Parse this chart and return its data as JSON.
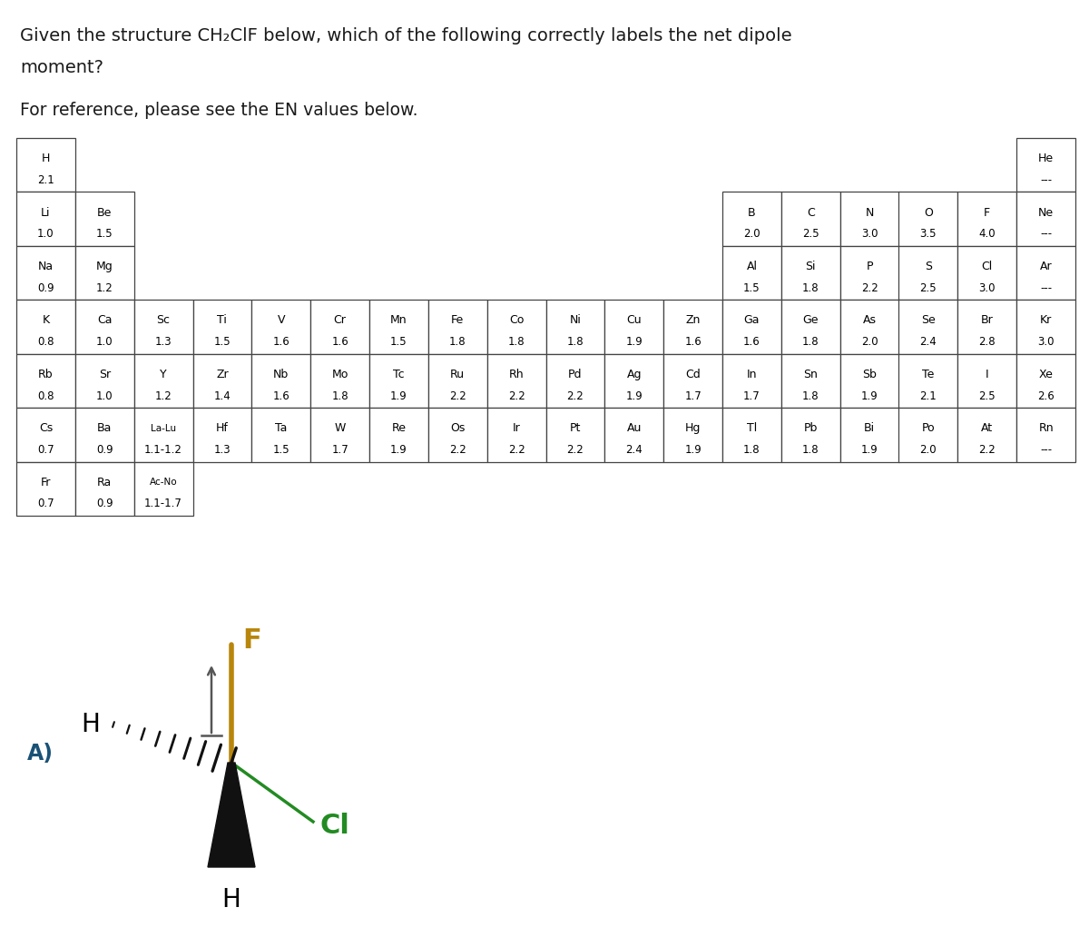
{
  "title_line1": "Given the structure CH₂ClF below, which of the following correctly labels the net dipole",
  "title_line2": "moment?",
  "subtitle": "For reference, please see the EN values below.",
  "bg_color": "#ffffff",
  "text_color": "#1a1a1a",
  "table_elements": [
    {
      "symbol": "H",
      "value": "2.1",
      "col": 0,
      "row": 0
    },
    {
      "symbol": "He",
      "value": "---",
      "col": 17,
      "row": 0
    },
    {
      "symbol": "Li",
      "value": "1.0",
      "col": 0,
      "row": 1
    },
    {
      "symbol": "Be",
      "value": "1.5",
      "col": 1,
      "row": 1
    },
    {
      "symbol": "B",
      "value": "2.0",
      "col": 12,
      "row": 1
    },
    {
      "symbol": "C",
      "value": "2.5",
      "col": 13,
      "row": 1
    },
    {
      "symbol": "N",
      "value": "3.0",
      "col": 14,
      "row": 1
    },
    {
      "symbol": "O",
      "value": "3.5",
      "col": 15,
      "row": 1
    },
    {
      "symbol": "F",
      "value": "4.0",
      "col": 16,
      "row": 1
    },
    {
      "symbol": "Ne",
      "value": "---",
      "col": 17,
      "row": 1
    },
    {
      "symbol": "Na",
      "value": "0.9",
      "col": 0,
      "row": 2
    },
    {
      "symbol": "Mg",
      "value": "1.2",
      "col": 1,
      "row": 2
    },
    {
      "symbol": "Al",
      "value": "1.5",
      "col": 12,
      "row": 2
    },
    {
      "symbol": "Si",
      "value": "1.8",
      "col": 13,
      "row": 2
    },
    {
      "symbol": "P",
      "value": "2.2",
      "col": 14,
      "row": 2
    },
    {
      "symbol": "S",
      "value": "2.5",
      "col": 15,
      "row": 2
    },
    {
      "symbol": "Cl",
      "value": "3.0",
      "col": 16,
      "row": 2
    },
    {
      "symbol": "Ar",
      "value": "---",
      "col": 17,
      "row": 2
    },
    {
      "symbol": "K",
      "value": "0.8",
      "col": 0,
      "row": 3
    },
    {
      "symbol": "Ca",
      "value": "1.0",
      "col": 1,
      "row": 3
    },
    {
      "symbol": "Sc",
      "value": "1.3",
      "col": 2,
      "row": 3
    },
    {
      "symbol": "Ti",
      "value": "1.5",
      "col": 3,
      "row": 3
    },
    {
      "symbol": "V",
      "value": "1.6",
      "col": 4,
      "row": 3
    },
    {
      "symbol": "Cr",
      "value": "1.6",
      "col": 5,
      "row": 3
    },
    {
      "symbol": "Mn",
      "value": "1.5",
      "col": 6,
      "row": 3
    },
    {
      "symbol": "Fe",
      "value": "1.8",
      "col": 7,
      "row": 3
    },
    {
      "symbol": "Co",
      "value": "1.8",
      "col": 8,
      "row": 3
    },
    {
      "symbol": "Ni",
      "value": "1.8",
      "col": 9,
      "row": 3
    },
    {
      "symbol": "Cu",
      "value": "1.9",
      "col": 10,
      "row": 3
    },
    {
      "symbol": "Zn",
      "value": "1.6",
      "col": 11,
      "row": 3
    },
    {
      "symbol": "Ga",
      "value": "1.6",
      "col": 12,
      "row": 3
    },
    {
      "symbol": "Ge",
      "value": "1.8",
      "col": 13,
      "row": 3
    },
    {
      "symbol": "As",
      "value": "2.0",
      "col": 14,
      "row": 3
    },
    {
      "symbol": "Se",
      "value": "2.4",
      "col": 15,
      "row": 3
    },
    {
      "symbol": "Br",
      "value": "2.8",
      "col": 16,
      "row": 3
    },
    {
      "symbol": "Kr",
      "value": "3.0",
      "col": 17,
      "row": 3
    },
    {
      "symbol": "Rb",
      "value": "0.8",
      "col": 0,
      "row": 4
    },
    {
      "symbol": "Sr",
      "value": "1.0",
      "col": 1,
      "row": 4
    },
    {
      "symbol": "Y",
      "value": "1.2",
      "col": 2,
      "row": 4
    },
    {
      "symbol": "Zr",
      "value": "1.4",
      "col": 3,
      "row": 4
    },
    {
      "symbol": "Nb",
      "value": "1.6",
      "col": 4,
      "row": 4
    },
    {
      "symbol": "Mo",
      "value": "1.8",
      "col": 5,
      "row": 4
    },
    {
      "symbol": "Tc",
      "value": "1.9",
      "col": 6,
      "row": 4
    },
    {
      "symbol": "Ru",
      "value": "2.2",
      "col": 7,
      "row": 4
    },
    {
      "symbol": "Rh",
      "value": "2.2",
      "col": 8,
      "row": 4
    },
    {
      "symbol": "Pd",
      "value": "2.2",
      "col": 9,
      "row": 4
    },
    {
      "symbol": "Ag",
      "value": "1.9",
      "col": 10,
      "row": 4
    },
    {
      "symbol": "Cd",
      "value": "1.7",
      "col": 11,
      "row": 4
    },
    {
      "symbol": "In",
      "value": "1.7",
      "col": 12,
      "row": 4
    },
    {
      "symbol": "Sn",
      "value": "1.8",
      "col": 13,
      "row": 4
    },
    {
      "symbol": "Sb",
      "value": "1.9",
      "col": 14,
      "row": 4
    },
    {
      "symbol": "Te",
      "value": "2.1",
      "col": 15,
      "row": 4
    },
    {
      "symbol": "I",
      "value": "2.5",
      "col": 16,
      "row": 4
    },
    {
      "symbol": "Xe",
      "value": "2.6",
      "col": 17,
      "row": 4
    },
    {
      "symbol": "Cs",
      "value": "0.7",
      "col": 0,
      "row": 5
    },
    {
      "symbol": "Ba",
      "value": "0.9",
      "col": 1,
      "row": 5
    },
    {
      "symbol": "La-Lu",
      "value": "1.1-1.2",
      "col": 2,
      "row": 5
    },
    {
      "symbol": "Hf",
      "value": "1.3",
      "col": 3,
      "row": 5
    },
    {
      "symbol": "Ta",
      "value": "1.5",
      "col": 4,
      "row": 5
    },
    {
      "symbol": "W",
      "value": "1.7",
      "col": 5,
      "row": 5
    },
    {
      "symbol": "Re",
      "value": "1.9",
      "col": 6,
      "row": 5
    },
    {
      "symbol": "Os",
      "value": "2.2",
      "col": 7,
      "row": 5
    },
    {
      "symbol": "Ir",
      "value": "2.2",
      "col": 8,
      "row": 5
    },
    {
      "symbol": "Pt",
      "value": "2.2",
      "col": 9,
      "row": 5
    },
    {
      "symbol": "Au",
      "value": "2.4",
      "col": 10,
      "row": 5
    },
    {
      "symbol": "Hg",
      "value": "1.9",
      "col": 11,
      "row": 5
    },
    {
      "symbol": "Tl",
      "value": "1.8",
      "col": 12,
      "row": 5
    },
    {
      "symbol": "Pb",
      "value": "1.8",
      "col": 13,
      "row": 5
    },
    {
      "symbol": "Bi",
      "value": "1.9",
      "col": 14,
      "row": 5
    },
    {
      "symbol": "Po",
      "value": "2.0",
      "col": 15,
      "row": 5
    },
    {
      "symbol": "At",
      "value": "2.2",
      "col": 16,
      "row": 5
    },
    {
      "symbol": "Rn",
      "value": "---",
      "col": 17,
      "row": 5
    },
    {
      "symbol": "Fr",
      "value": "0.7",
      "col": 0,
      "row": 6
    },
    {
      "symbol": "Ra",
      "value": "0.9",
      "col": 1,
      "row": 6
    },
    {
      "symbol": "Ac-No",
      "value": "1.1-1.7",
      "col": 2,
      "row": 6
    }
  ],
  "F_color": "#b8860b",
  "Cl_color": "#228B22",
  "bond_color": "#111111",
  "arrow_color": "#555555",
  "label_A_color": "#1a5276"
}
